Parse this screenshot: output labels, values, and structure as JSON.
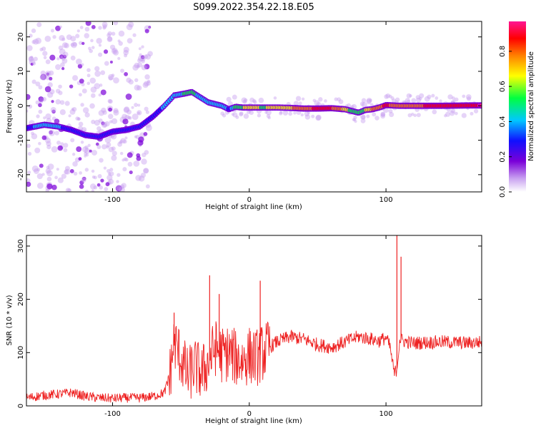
{
  "title": "S099.2022.354.22.18.E05",
  "chart_data": [
    {
      "type": "heatmap",
      "xlabel": "Height of straight line (km)",
      "ylabel": "Frequency (Hz)",
      "xlim": [
        -163,
        170
      ],
      "ylim": [
        -25,
        24.5
      ],
      "xticks": [
        -100,
        0,
        100
      ],
      "yticks": [
        20,
        10,
        0,
        -10,
        -20
      ],
      "colorbar": {
        "label": "Normalized spectral amplitude",
        "range": [
          0.0,
          0.97
        ],
        "ticks": [
          0.0,
          0.2,
          0.4,
          0.6,
          0.8
        ],
        "colormap": [
          "#ffffff",
          "#c8a0f0",
          "#7a00d8",
          "#1010ff",
          "#00c8ff",
          "#00ff40",
          "#ffff00",
          "#ff8000",
          "#ff0000",
          "#ff1493"
        ]
      },
      "ridge": {
        "x": [
          -163,
          -150,
          -140,
          -130,
          -120,
          -110,
          -100,
          -90,
          -80,
          -70,
          -62,
          -55,
          -48,
          -42,
          -36,
          -30,
          -25,
          -20,
          -15,
          -10,
          -5,
          0,
          10,
          20,
          30,
          40,
          50,
          60,
          70,
          75,
          80,
          85,
          90,
          95,
          100,
          110,
          120,
          140,
          160,
          170
        ],
        "y": [
          -6.5,
          -5.5,
          -6,
          -7,
          -8.5,
          -9,
          -7.5,
          -7,
          -6,
          -3,
          0,
          3,
          3.5,
          4,
          2.5,
          1,
          0.5,
          0,
          -1,
          -0.3,
          -0.5,
          -0.5,
          -0.5,
          -0.5,
          -0.6,
          -0.8,
          -0.8,
          -0.7,
          -1,
          -1.5,
          -2,
          -1.2,
          -1,
          -0.5,
          0.2,
          0,
          0,
          0,
          0.1,
          0.1
        ],
        "amplitude": [
          0.35,
          0.45,
          0.4,
          0.35,
          0.3,
          0.3,
          0.35,
          0.3,
          0.3,
          0.35,
          0.4,
          0.45,
          0.5,
          0.55,
          0.45,
          0.45,
          0.4,
          0.5,
          0.35,
          0.55,
          0.6,
          0.65,
          0.6,
          0.65,
          0.7,
          0.8,
          0.85,
          0.85,
          0.7,
          0.55,
          0.5,
          0.6,
          0.75,
          0.8,
          0.85,
          0.8,
          0.8,
          0.88,
          0.93,
          0.95
        ]
      }
    },
    {
      "type": "line",
      "xlabel": "Height of straight line (km)",
      "ylabel": "SNR (10 * v/v)",
      "xlim": [
        -163,
        170
      ],
      "ylim": [
        0,
        320
      ],
      "xticks": [
        -100,
        0,
        100
      ],
      "yticks": [
        300,
        200,
        100,
        0
      ],
      "color": "#ee2222",
      "series": [
        {
          "x": [
            -163,
            -150,
            -140,
            -130,
            -120,
            -110,
            -100,
            -90,
            -80,
            -70,
            -62,
            -58,
            -55,
            -50,
            -45,
            -40,
            -35,
            -30,
            -25,
            -20,
            -15,
            -10,
            -5,
            0,
            5,
            10,
            15,
            20,
            30,
            40,
            50,
            60,
            70,
            80,
            90,
            95,
            100,
            103,
            106,
            108,
            110,
            115,
            120,
            140,
            160,
            170
          ],
          "values": [
            15,
            20,
            22,
            25,
            18,
            15,
            14,
            15,
            15,
            18,
            25,
            60,
            120,
            90,
            55,
            75,
            60,
            80,
            110,
            95,
            100,
            90,
            85,
            95,
            90,
            100,
            110,
            120,
            130,
            125,
            115,
            110,
            120,
            130,
            125,
            122,
            128,
            110,
            60,
            70,
            125,
            120,
            118,
            120,
            118,
            120
          ]
        }
      ],
      "spikes": [
        {
          "x": -55,
          "y": 175
        },
        {
          "x": -29,
          "y": 245
        },
        {
          "x": -22,
          "y": 210
        },
        {
          "x": 8,
          "y": 235
        },
        {
          "x": 108,
          "y": 320
        },
        {
          "x": 111,
          "y": 280
        }
      ]
    }
  ]
}
